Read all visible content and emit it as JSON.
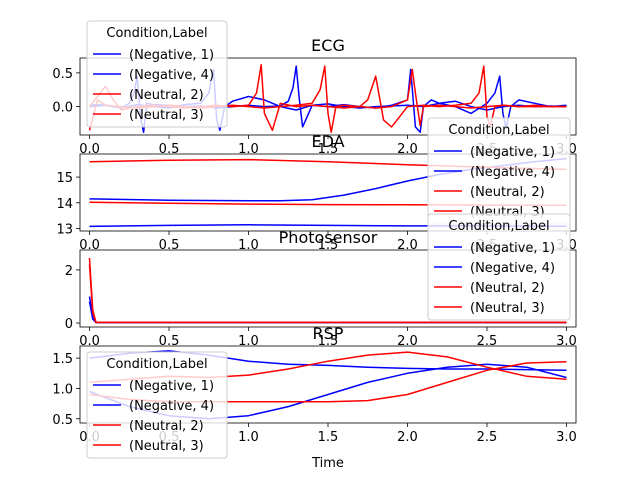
{
  "colors": {
    "Negative": "#0000ff",
    "Neutral": "#ff0000"
  },
  "chart_data": [
    {
      "type": "line",
      "title": "ECG",
      "xlabel": "",
      "xlim": [
        -0.06,
        3.06
      ],
      "ylim": [
        -0.42,
        0.72
      ],
      "xticks": [
        "0.0",
        "0.5",
        "1.0",
        "1.5",
        "2.0",
        "2.5",
        "3.0"
      ],
      "yticks": [
        "0.0",
        "0.5"
      ],
      "legend": {
        "title": "Condition,Label",
        "placement": "top-left",
        "entries": [
          "(Negative, 1)",
          "(Negative, 4)",
          "(Neutral, 2)",
          "(Neutral, 3)"
        ]
      },
      "series": [
        {
          "name": "(Negative, 1)",
          "color": "Negative",
          "x": [
            0,
            0.05,
            0.1,
            0.15,
            0.2,
            0.25,
            0.28,
            0.3,
            0.32,
            0.34,
            0.36,
            0.4,
            0.5,
            0.6,
            0.7,
            0.8,
            0.9,
            1.0,
            1.1,
            1.2,
            1.25,
            1.28,
            1.3,
            1.32,
            1.34,
            1.36,
            1.4,
            1.5,
            1.6,
            1.7,
            1.8,
            1.9,
            2.0,
            2.1,
            2.2,
            2.3,
            2.4,
            2.5,
            2.6,
            2.7,
            2.8,
            2.9,
            3.0
          ],
          "y": [
            0.02,
            0.03,
            0.02,
            0.0,
            -0.02,
            0.05,
            0.2,
            0.45,
            -0.15,
            -0.38,
            0.05,
            0.03,
            0.02,
            0.0,
            0.01,
            -0.02,
            0.0,
            0.02,
            0.0,
            0.01,
            0.08,
            0.28,
            0.6,
            0.1,
            -0.3,
            -0.2,
            0.02,
            0.04,
            0.0,
            -0.02,
            0.0,
            0.01,
            0.02,
            0.0,
            0.05,
            0.08,
            0.0,
            -0.05,
            0.0,
            0.02,
            0.0,
            0.01,
            0.0
          ]
        },
        {
          "name": "(Negative, 4)",
          "color": "Negative",
          "x": [
            0,
            0.1,
            0.2,
            0.3,
            0.4,
            0.5,
            0.6,
            0.7,
            0.75,
            0.78,
            0.8,
            0.82,
            0.85,
            0.9,
            1.0,
            1.1,
            1.2,
            1.3,
            1.4,
            1.5,
            1.6,
            1.7,
            1.8,
            1.9,
            2.0,
            2.02,
            2.05,
            2.08,
            2.1,
            2.15,
            2.2,
            2.3,
            2.4,
            2.5,
            2.55,
            2.58,
            2.6,
            2.62,
            2.65,
            2.7,
            2.8,
            2.9,
            3.0
          ],
          "y": [
            0.0,
            0.02,
            -0.02,
            0.03,
            0.0,
            -0.02,
            0.03,
            0.05,
            0.2,
            0.55,
            -0.2,
            -0.35,
            0.0,
            0.08,
            0.15,
            0.1,
            0.0,
            -0.05,
            0.02,
            0.0,
            0.03,
            0.0,
            -0.02,
            0.02,
            0.1,
            0.55,
            -0.3,
            -0.38,
            0.0,
            0.1,
            0.05,
            0.0,
            -0.1,
            0.05,
            0.2,
            0.45,
            -0.1,
            -0.32,
            0.0,
            0.1,
            0.05,
            0.0,
            0.02
          ]
        },
        {
          "name": "(Neutral, 2)",
          "color": "Neutral",
          "x": [
            0,
            0.05,
            0.1,
            0.15,
            0.2,
            0.3,
            0.4,
            0.5,
            0.6,
            0.7,
            0.8,
            0.9,
            1.0,
            1.05,
            1.08,
            1.1,
            1.15,
            1.2,
            1.3,
            1.4,
            1.5,
            1.6,
            1.7,
            1.75,
            1.8,
            1.85,
            1.9,
            2.0,
            2.1,
            2.2,
            2.3,
            2.4,
            2.45,
            2.48,
            2.5,
            2.52,
            2.55,
            2.6,
            2.7,
            2.8,
            2.9,
            3.0
          ],
          "y": [
            0.0,
            0.15,
            0.3,
            0.1,
            -0.05,
            0.0,
            0.02,
            0.0,
            -0.02,
            0.0,
            0.02,
            0.0,
            0.02,
            0.2,
            0.62,
            -0.1,
            -0.35,
            0.05,
            0.0,
            0.02,
            0.0,
            -0.02,
            0.0,
            0.1,
            0.45,
            -0.2,
            -0.3,
            0.0,
            0.02,
            0.0,
            0.02,
            0.05,
            0.2,
            0.6,
            -0.15,
            -0.3,
            0.0,
            0.02,
            0.0,
            0.0,
            0.0,
            0.0
          ]
        },
        {
          "name": "(Neutral, 3)",
          "color": "Neutral",
          "x": [
            0,
            0.05,
            0.1,
            0.2,
            0.3,
            0.4,
            0.5,
            0.6,
            0.7,
            0.8,
            0.9,
            1.0,
            1.1,
            1.2,
            1.3,
            1.4,
            1.45,
            1.48,
            1.5,
            1.52,
            1.55,
            1.6,
            1.7,
            1.8,
            1.9,
            2.0,
            2.03,
            2.05,
            2.08,
            2.1,
            2.2,
            2.3,
            2.4,
            2.5,
            2.6,
            2.7,
            2.8,
            2.9,
            3.0
          ],
          "y": [
            -0.35,
            0.1,
            0.02,
            0.0,
            -0.02,
            0.0,
            0.02,
            0.0,
            -0.02,
            0.0,
            0.02,
            0.0,
            -0.02,
            0.0,
            0.02,
            0.05,
            0.25,
            0.6,
            -0.1,
            -0.38,
            0.0,
            0.02,
            0.0,
            -0.02,
            0.0,
            0.1,
            0.55,
            0.2,
            -0.28,
            0.0,
            0.02,
            0.0,
            -0.02,
            0.0,
            0.02,
            0.0,
            0.02,
            0.0,
            0.0
          ]
        }
      ]
    },
    {
      "type": "line",
      "title": "EDA",
      "xlabel": "",
      "xlim": [
        -0.06,
        3.06
      ],
      "ylim": [
        12.9,
        15.9
      ],
      "xticks": [
        "0.0",
        "0.5",
        "1.0",
        "1.5",
        "2.0",
        "2.5",
        "3.0"
      ],
      "yticks": [
        "13",
        "14",
        "15"
      ],
      "legend": {
        "title": "Condition,Label",
        "placement": "right",
        "entries": [
          "(Negative, 1)",
          "(Negative, 4)",
          "(Neutral, 2)",
          "(Neutral, 3)"
        ]
      },
      "series": [
        {
          "name": "(Negative, 1)",
          "color": "Negative",
          "x": [
            0,
            0.5,
            1.0,
            1.5,
            2.0,
            2.5,
            3.0
          ],
          "y": [
            13.08,
            13.12,
            13.14,
            13.12,
            13.1,
            13.1,
            13.08
          ]
        },
        {
          "name": "(Negative, 4)",
          "color": "Negative",
          "x": [
            0,
            0.5,
            1.0,
            1.2,
            1.4,
            1.6,
            1.8,
            2.0,
            2.2,
            2.4,
            2.6,
            2.8,
            3.0
          ],
          "y": [
            14.15,
            14.1,
            14.08,
            14.08,
            14.12,
            14.3,
            14.55,
            14.85,
            15.1,
            15.3,
            15.45,
            15.6,
            15.72
          ]
        },
        {
          "name": "(Neutral, 2)",
          "color": "Neutral",
          "x": [
            0,
            0.5,
            1.0,
            1.5,
            2.0,
            2.5,
            3.0
          ],
          "y": [
            15.6,
            15.66,
            15.68,
            15.6,
            15.48,
            15.38,
            15.3
          ]
        },
        {
          "name": "(Neutral, 3)",
          "color": "Neutral",
          "x": [
            0,
            0.5,
            1.0,
            1.5,
            2.0,
            2.5,
            3.0
          ],
          "y": [
            14.02,
            13.98,
            13.95,
            13.93,
            13.92,
            13.91,
            13.9
          ]
        }
      ]
    },
    {
      "type": "line",
      "title": "Photosensor",
      "xlabel": "",
      "xlim": [
        -0.06,
        3.06
      ],
      "ylim": [
        -0.15,
        2.75
      ],
      "xticks": [
        "0.0",
        "0.5",
        "1.0",
        "1.5",
        "2.0",
        "2.5",
        "3.0"
      ],
      "yticks": [
        "0",
        "2"
      ],
      "legend": {
        "title": "Condition,Label",
        "placement": "right",
        "entries": [
          "(Negative, 1)",
          "(Negative, 4)",
          "(Neutral, 2)",
          "(Neutral, 3)"
        ]
      },
      "series": [
        {
          "name": "(Negative, 1)",
          "color": "Negative",
          "x": [
            0,
            0.02,
            0.04,
            3.0
          ],
          "y": [
            1.0,
            0.2,
            0.02,
            0.02
          ]
        },
        {
          "name": "(Negative, 4)",
          "color": "Negative",
          "x": [
            0,
            0.02,
            0.04,
            3.0
          ],
          "y": [
            0.8,
            0.15,
            0.02,
            0.02
          ]
        },
        {
          "name": "(Neutral, 2)",
          "color": "Neutral",
          "x": [
            0,
            0.02,
            0.04,
            3.0
          ],
          "y": [
            2.45,
            0.5,
            0.03,
            0.03
          ]
        },
        {
          "name": "(Neutral, 3)",
          "color": "Neutral",
          "x": [
            0,
            0.02,
            0.04,
            3.0
          ],
          "y": [
            2.2,
            0.4,
            0.02,
            0.02
          ]
        }
      ]
    },
    {
      "type": "line",
      "title": "RSP",
      "xlabel": "Time",
      "xlim": [
        -0.06,
        3.06
      ],
      "ylim": [
        0.43,
        1.7
      ],
      "xticks": [
        "0.0",
        "0.5",
        "1.0",
        "1.5",
        "2.0",
        "2.5",
        "3.0"
      ],
      "yticks": [
        "0.5",
        "1.0",
        "1.5"
      ],
      "legend": {
        "title": "Condition,Label",
        "placement": "bottom-left",
        "entries": [
          "(Negative, 1)",
          "(Negative, 4)",
          "(Neutral, 2)",
          "(Neutral, 3)"
        ]
      },
      "series": [
        {
          "name": "(Negative, 1)",
          "color": "Negative",
          "x": [
            0,
            0.25,
            0.5,
            0.75,
            1.0,
            1.25,
            1.5,
            1.75,
            2.0,
            2.25,
            2.5,
            2.75,
            3.0
          ],
          "y": [
            1.5,
            1.58,
            1.62,
            1.55,
            1.45,
            1.4,
            1.38,
            1.35,
            1.33,
            1.32,
            1.32,
            1.31,
            1.3
          ]
        },
        {
          "name": "(Negative, 4)",
          "color": "Negative",
          "x": [
            0,
            0.25,
            0.5,
            0.75,
            1.0,
            1.25,
            1.5,
            1.75,
            2.0,
            2.25,
            2.5,
            2.75,
            3.0
          ],
          "y": [
            0.95,
            0.7,
            0.55,
            0.5,
            0.55,
            0.7,
            0.9,
            1.1,
            1.25,
            1.35,
            1.4,
            1.35,
            1.18
          ]
        },
        {
          "name": "(Neutral, 2)",
          "color": "Neutral",
          "x": [
            0,
            0.25,
            0.5,
            0.75,
            1.0,
            1.25,
            1.5,
            1.75,
            2.0,
            2.25,
            2.5,
            2.75,
            3.0
          ],
          "y": [
            1.1,
            1.15,
            1.2,
            1.18,
            1.22,
            1.32,
            1.45,
            1.55,
            1.6,
            1.52,
            1.35,
            1.2,
            1.15
          ]
        },
        {
          "name": "(Neutral, 3)",
          "color": "Neutral",
          "x": [
            0,
            0.25,
            0.5,
            0.75,
            1.0,
            1.25,
            1.5,
            1.75,
            2.0,
            2.25,
            2.5,
            2.75,
            3.0
          ],
          "y": [
            0.9,
            0.82,
            0.78,
            0.78,
            0.78,
            0.78,
            0.78,
            0.8,
            0.9,
            1.1,
            1.3,
            1.42,
            1.44
          ]
        }
      ]
    }
  ]
}
